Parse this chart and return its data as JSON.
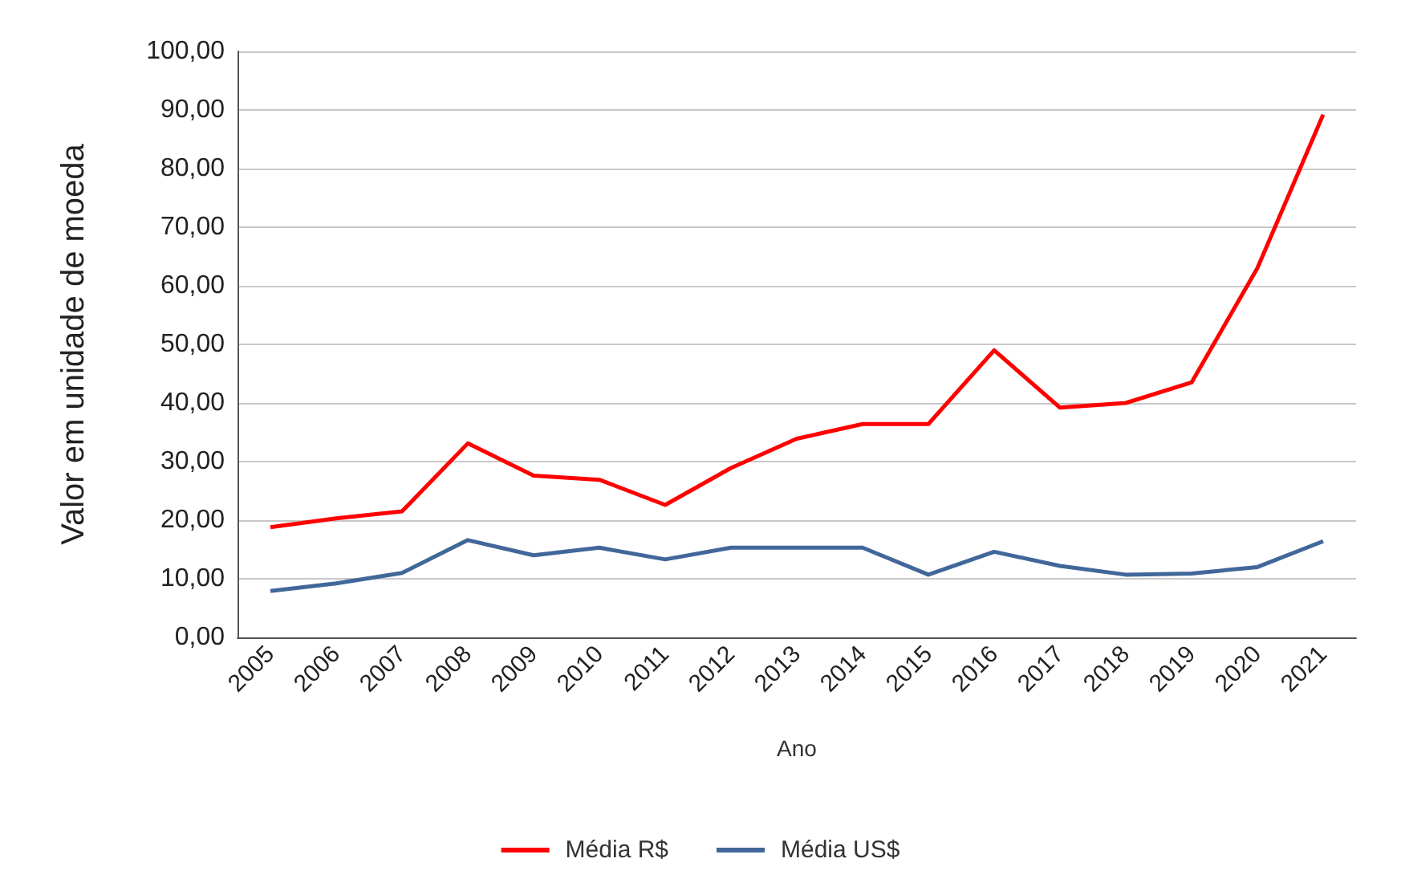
{
  "chart_data": {
    "type": "line",
    "xlabel": "Ano",
    "ylabel": "Valor em unidade de moeda",
    "categories": [
      "2005",
      "2006",
      "2007",
      "2008",
      "2009",
      "2010",
      "2011",
      "2012",
      "2013",
      "2014",
      "2015",
      "2016",
      "2017",
      "2018",
      "2019",
      "2020",
      "2021"
    ],
    "series": [
      {
        "name": "Média R$",
        "color": "#ff0000",
        "values": [
          18.8,
          20.3,
          21.5,
          33.1,
          27.6,
          26.9,
          22.6,
          28.9,
          33.9,
          36.4,
          36.4,
          49.0,
          39.2,
          40.0,
          43.5,
          63.0,
          89.2
        ]
      },
      {
        "name": "Média US$",
        "color": "#41679a",
        "values": [
          7.9,
          9.2,
          11.0,
          16.6,
          14.0,
          15.3,
          13.3,
          15.3,
          15.3,
          15.3,
          10.7,
          14.6,
          12.2,
          10.7,
          10.9,
          12.0,
          16.4
        ]
      }
    ],
    "ylim": [
      0,
      100
    ],
    "yticks": [
      {
        "value": 0,
        "label": "0,00"
      },
      {
        "value": 10,
        "label": "10,00"
      },
      {
        "value": 20,
        "label": "20,00"
      },
      {
        "value": 30,
        "label": "30,00"
      },
      {
        "value": 40,
        "label": "40,00"
      },
      {
        "value": 50,
        "label": "50,00"
      },
      {
        "value": 60,
        "label": "60,00"
      },
      {
        "value": 70,
        "label": "70,00"
      },
      {
        "value": 80,
        "label": "80,00"
      },
      {
        "value": 90,
        "label": "90,00"
      },
      {
        "value": 100,
        "label": "100,00"
      }
    ],
    "grid": "y",
    "legend": "bottom",
    "marker": "none",
    "line_style": "solid"
  }
}
